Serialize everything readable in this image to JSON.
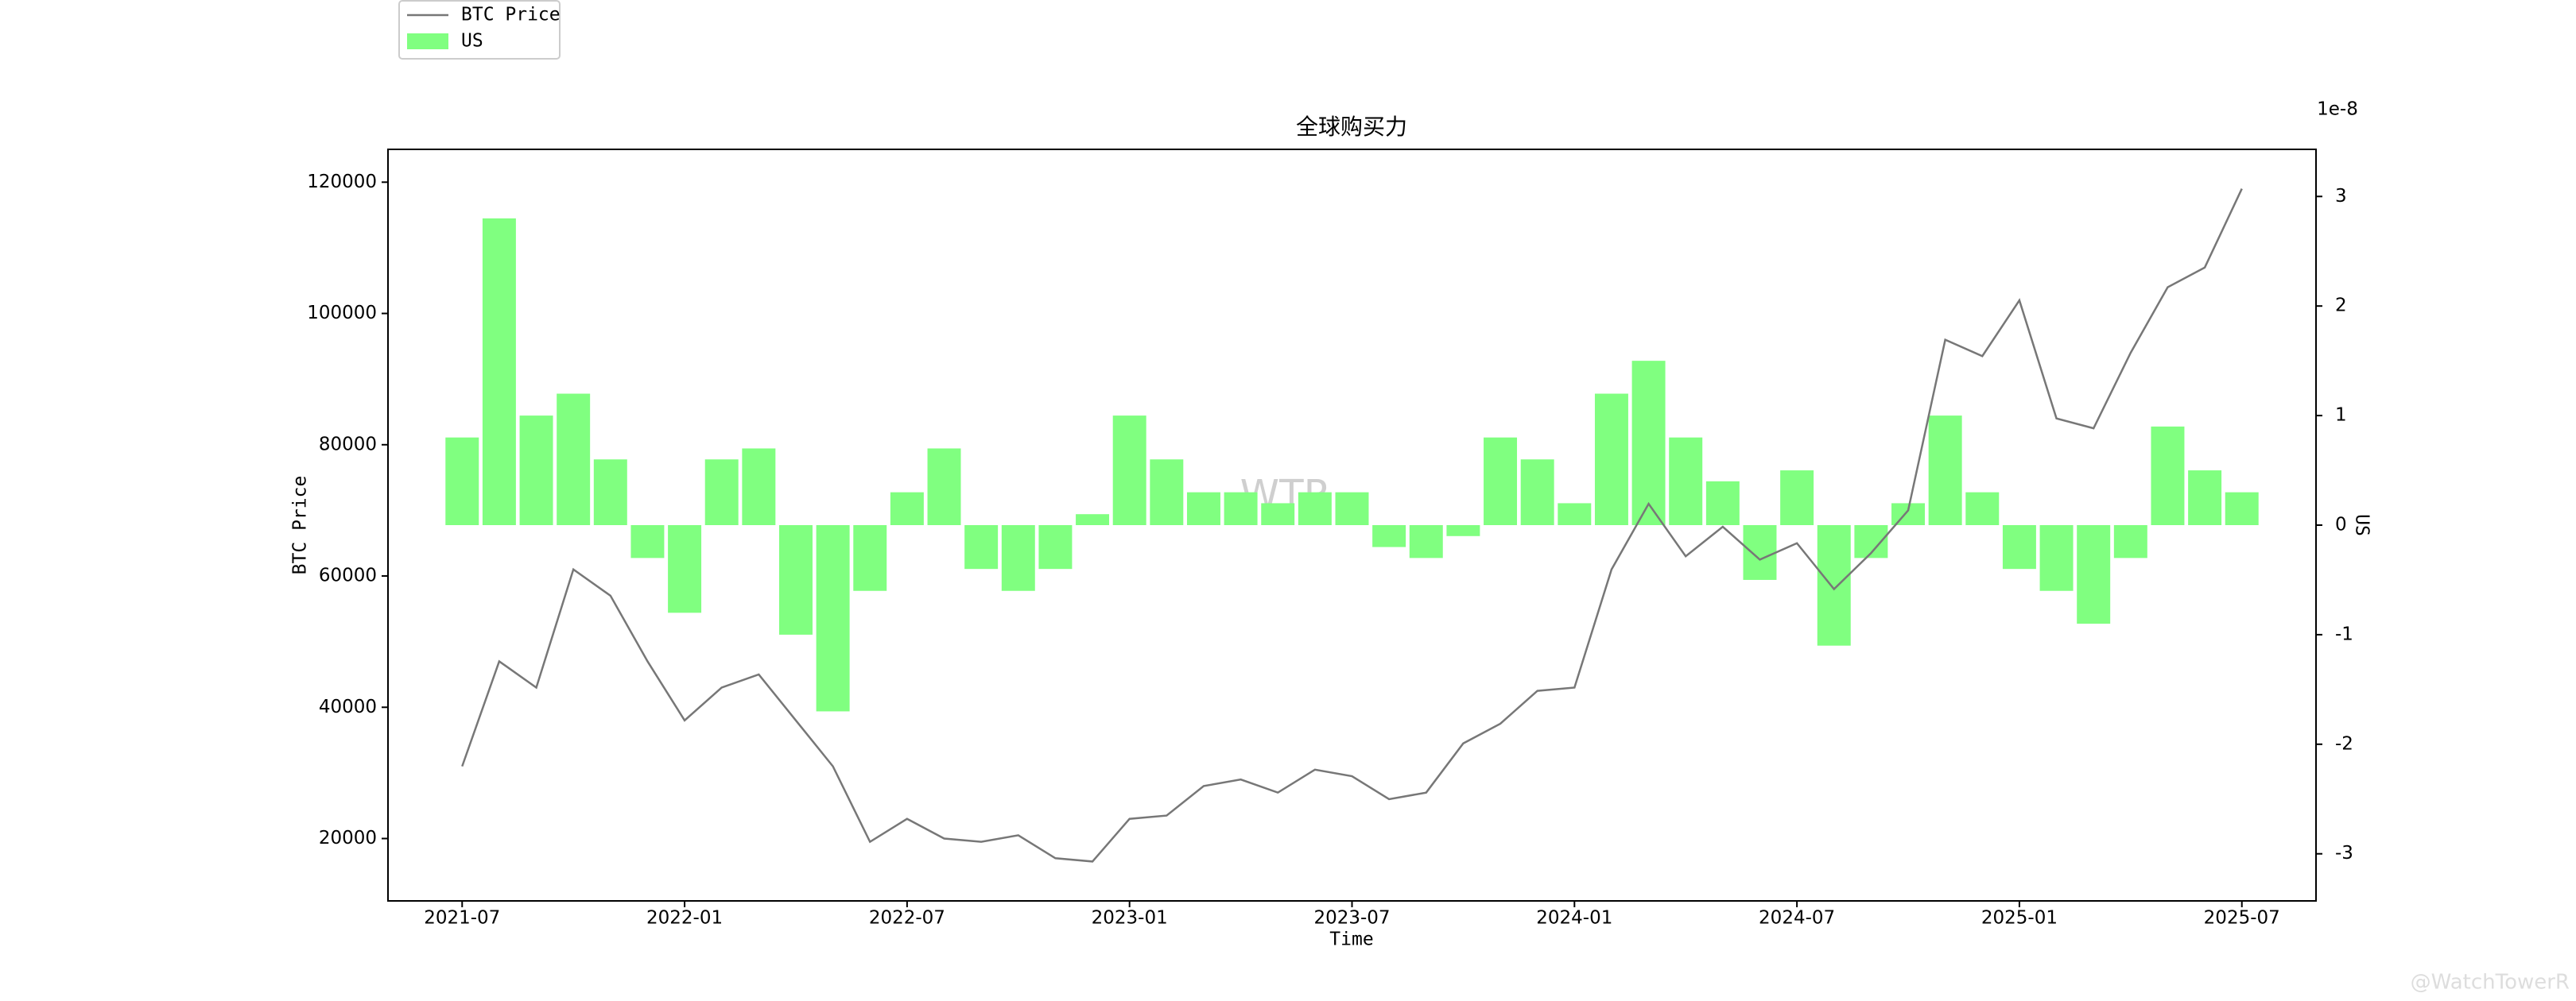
{
  "chart_data": {
    "type": "bar-line",
    "title": "全球购买力",
    "xlabel": "Time",
    "ylabel": "BTC Price",
    "y2label": "US",
    "y2_offset_label": "1e-8",
    "watermarks": [
      "WTR",
      "@WatchTowerR"
    ],
    "legend": "upper-left-outside",
    "x": [
      "2021-07",
      "2021-08",
      "2021-09",
      "2021-10",
      "2021-11",
      "2021-12",
      "2022-01",
      "2022-02",
      "2022-03",
      "2022-04",
      "2022-05",
      "2022-06",
      "2022-07",
      "2022-08",
      "2022-09",
      "2022-10",
      "2022-11",
      "2022-12",
      "2023-01",
      "2023-02",
      "2023-03",
      "2023-04",
      "2023-05",
      "2023-06",
      "2023-07",
      "2023-08",
      "2023-09",
      "2023-10",
      "2023-11",
      "2023-12",
      "2024-01",
      "2024-02",
      "2024-03",
      "2024-04",
      "2024-05",
      "2024-06",
      "2024-07",
      "2024-08",
      "2024-09",
      "2024-10",
      "2024-11",
      "2024-12",
      "2025-01",
      "2025-02",
      "2025-03",
      "2025-04",
      "2025-05",
      "2025-06",
      "2025-07"
    ],
    "xlim": [
      "2021-05",
      "2025-09"
    ],
    "xticks": [
      "2021-07",
      "2022-01",
      "2022-07",
      "2023-01",
      "2023-07",
      "2024-01",
      "2024-07",
      "2025-01",
      "2025-07"
    ],
    "ylim": [
      10500,
      125000
    ],
    "yticks": [
      20000,
      40000,
      60000,
      80000,
      100000,
      120000
    ],
    "y2lim": [
      -3.43,
      3.43
    ],
    "y2ticks": [
      -3,
      -2,
      -1,
      0,
      1,
      2,
      3
    ],
    "series": [
      {
        "name": "BTC Price",
        "kind": "line",
        "color": "#777777",
        "values": [
          31000,
          47000,
          43000,
          61000,
          57000,
          47000,
          38000,
          43000,
          45000,
          38000,
          31000,
          19500,
          23000,
          20000,
          19500,
          20500,
          17000,
          16500,
          23000,
          23500,
          28000,
          29000,
          27000,
          30500,
          29500,
          26000,
          27000,
          34500,
          37500,
          42500,
          43000,
          61000,
          71000,
          63000,
          67500,
          62500,
          65000,
          58000,
          63500,
          70000,
          96000,
          93500,
          102000,
          84000,
          82500,
          94000,
          104000,
          107000,
          119000
        ]
      },
      {
        "name": "US",
        "kind": "bar",
        "axis": "y2",
        "color": "#80ff80",
        "values": [
          0.8,
          2.8,
          1.0,
          1.2,
          0.6,
          -0.3,
          -0.8,
          0.6,
          0.7,
          -1.0,
          -1.7,
          -0.6,
          0.3,
          0.7,
          -0.4,
          -0.6,
          -0.4,
          0.1,
          1.0,
          0.6,
          0.3,
          0.3,
          0.2,
          0.3,
          0.3,
          -0.2,
          -0.3,
          -0.1,
          0.8,
          0.6,
          0.2,
          1.2,
          1.5,
          0.8,
          0.4,
          -0.5,
          0.5,
          -1.1,
          -0.3,
          0.2,
          1.0,
          0.3,
          -0.4,
          -0.6,
          -0.9,
          -0.3,
          0.9,
          0.5,
          0.3
        ]
      }
    ]
  }
}
